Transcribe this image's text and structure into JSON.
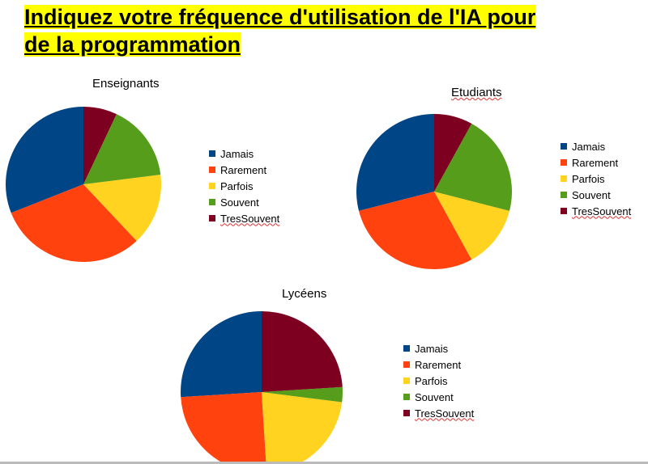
{
  "title_line1": "Indiquez votre fréquence d'utilisation de l'IA pour",
  "title_line2": "de la programmation",
  "colors": {
    "Jamais": "#004586",
    "Rarement": "#ff420e",
    "Parfois": "#ffd320",
    "Souvent": "#579d1c",
    "TresSouvent": "#7e0021"
  },
  "chart_data": [
    {
      "type": "pie",
      "title": "Enseignants",
      "categories": [
        "Jamais",
        "Rarement",
        "Parfois",
        "Souvent",
        "TresSouvent"
      ],
      "values": [
        31,
        31,
        15,
        16,
        7
      ],
      "legend": "right"
    },
    {
      "type": "pie",
      "title": "Etudiants",
      "categories": [
        "Jamais",
        "Rarement",
        "Parfois",
        "Souvent",
        "TresSouvent"
      ],
      "values": [
        29,
        29,
        13,
        21,
        8
      ],
      "legend": "right"
    },
    {
      "type": "pie",
      "title": "Lycéens",
      "categories": [
        "Jamais",
        "Rarement",
        "Parfois",
        "Souvent",
        "TresSouvent"
      ],
      "values": [
        26,
        25,
        22,
        3,
        24
      ],
      "legend": "right"
    }
  ]
}
